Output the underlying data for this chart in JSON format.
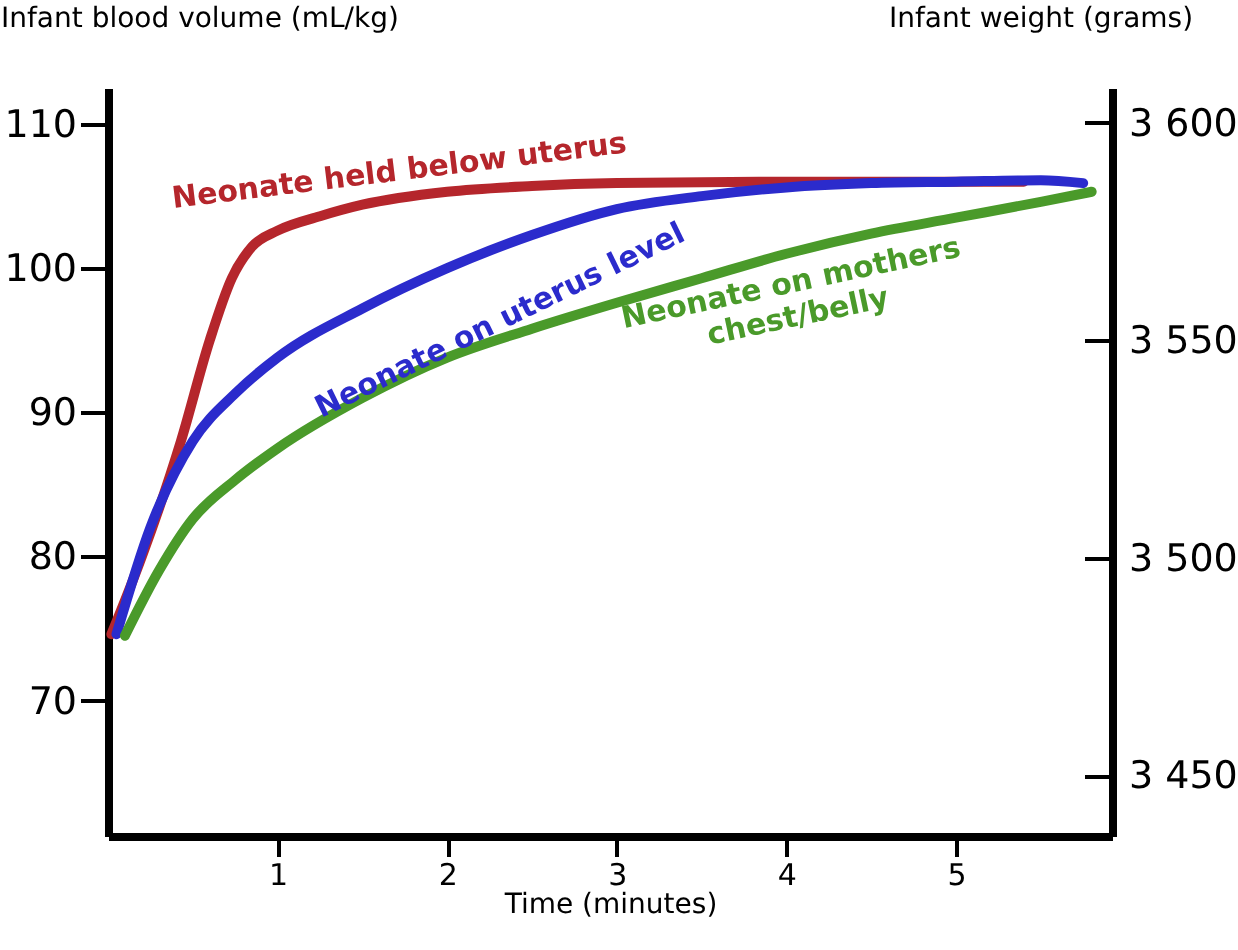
{
  "chart_data": {
    "type": "line",
    "xlabel": "Time (minutes)",
    "ylabel": "Infant blood volume (mL/kg)",
    "y2label": "Infant weight (grams)",
    "xlim": [
      0,
      5.92
    ],
    "xticks": [
      1,
      2,
      3,
      4,
      5
    ],
    "ylim": [
      60.6,
      112.5
    ],
    "yticks": [
      70,
      80,
      90,
      100,
      110
    ],
    "y2lim": [
      3436,
      3608
    ],
    "y2ticks": [
      {
        "value": 3450,
        "label": "3 450"
      },
      {
        "value": 3500,
        "label": "3 500"
      },
      {
        "value": 3550,
        "label": "3 550"
      },
      {
        "value": 3600,
        "label": "3 600"
      }
    ],
    "grid": false,
    "marker": "none",
    "line_style": "solid",
    "series": [
      {
        "name": "Neonate held below uterus",
        "color": "#b5262c",
        "x": [
          0.02,
          0.2,
          0.43,
          0.6,
          0.73,
          0.85,
          1.0,
          1.25,
          1.5,
          2.0,
          2.5,
          3.0,
          4.0,
          5.0,
          5.4
        ],
        "values": [
          74.6,
          80,
          88,
          95,
          99.3,
          101.5,
          102.6,
          103.6,
          104.4,
          105.3,
          105.7,
          105.9,
          106,
          106,
          106
        ]
      },
      {
        "name": "Neonate on uterus level",
        "color": "#2b2bcc",
        "x": [
          0.05,
          0.25,
          0.5,
          0.75,
          1.0,
          1.5,
          2.0,
          2.5,
          3.0,
          3.5,
          4.0,
          4.5,
          5.0,
          5.5,
          5.75
        ],
        "values": [
          74.6,
          82,
          88,
          91.3,
          93.8,
          97.2,
          100,
          102.3,
          104.1,
          105,
          105.6,
          105.9,
          106,
          106.1,
          105.9
        ]
      },
      {
        "name": "Neonate on mothers chest/belly",
        "color": "#4a9a2a",
        "x": [
          0.1,
          0.3,
          0.5,
          0.75,
          1.0,
          1.5,
          2.0,
          2.5,
          3.0,
          3.5,
          4.0,
          4.5,
          5.0,
          5.5,
          5.8
        ],
        "values": [
          74.5,
          79,
          82.6,
          85.3,
          87.5,
          91,
          93.8,
          95.8,
          97.6,
          99.3,
          101,
          102.4,
          103.5,
          104.6,
          105.3
        ]
      }
    ]
  }
}
